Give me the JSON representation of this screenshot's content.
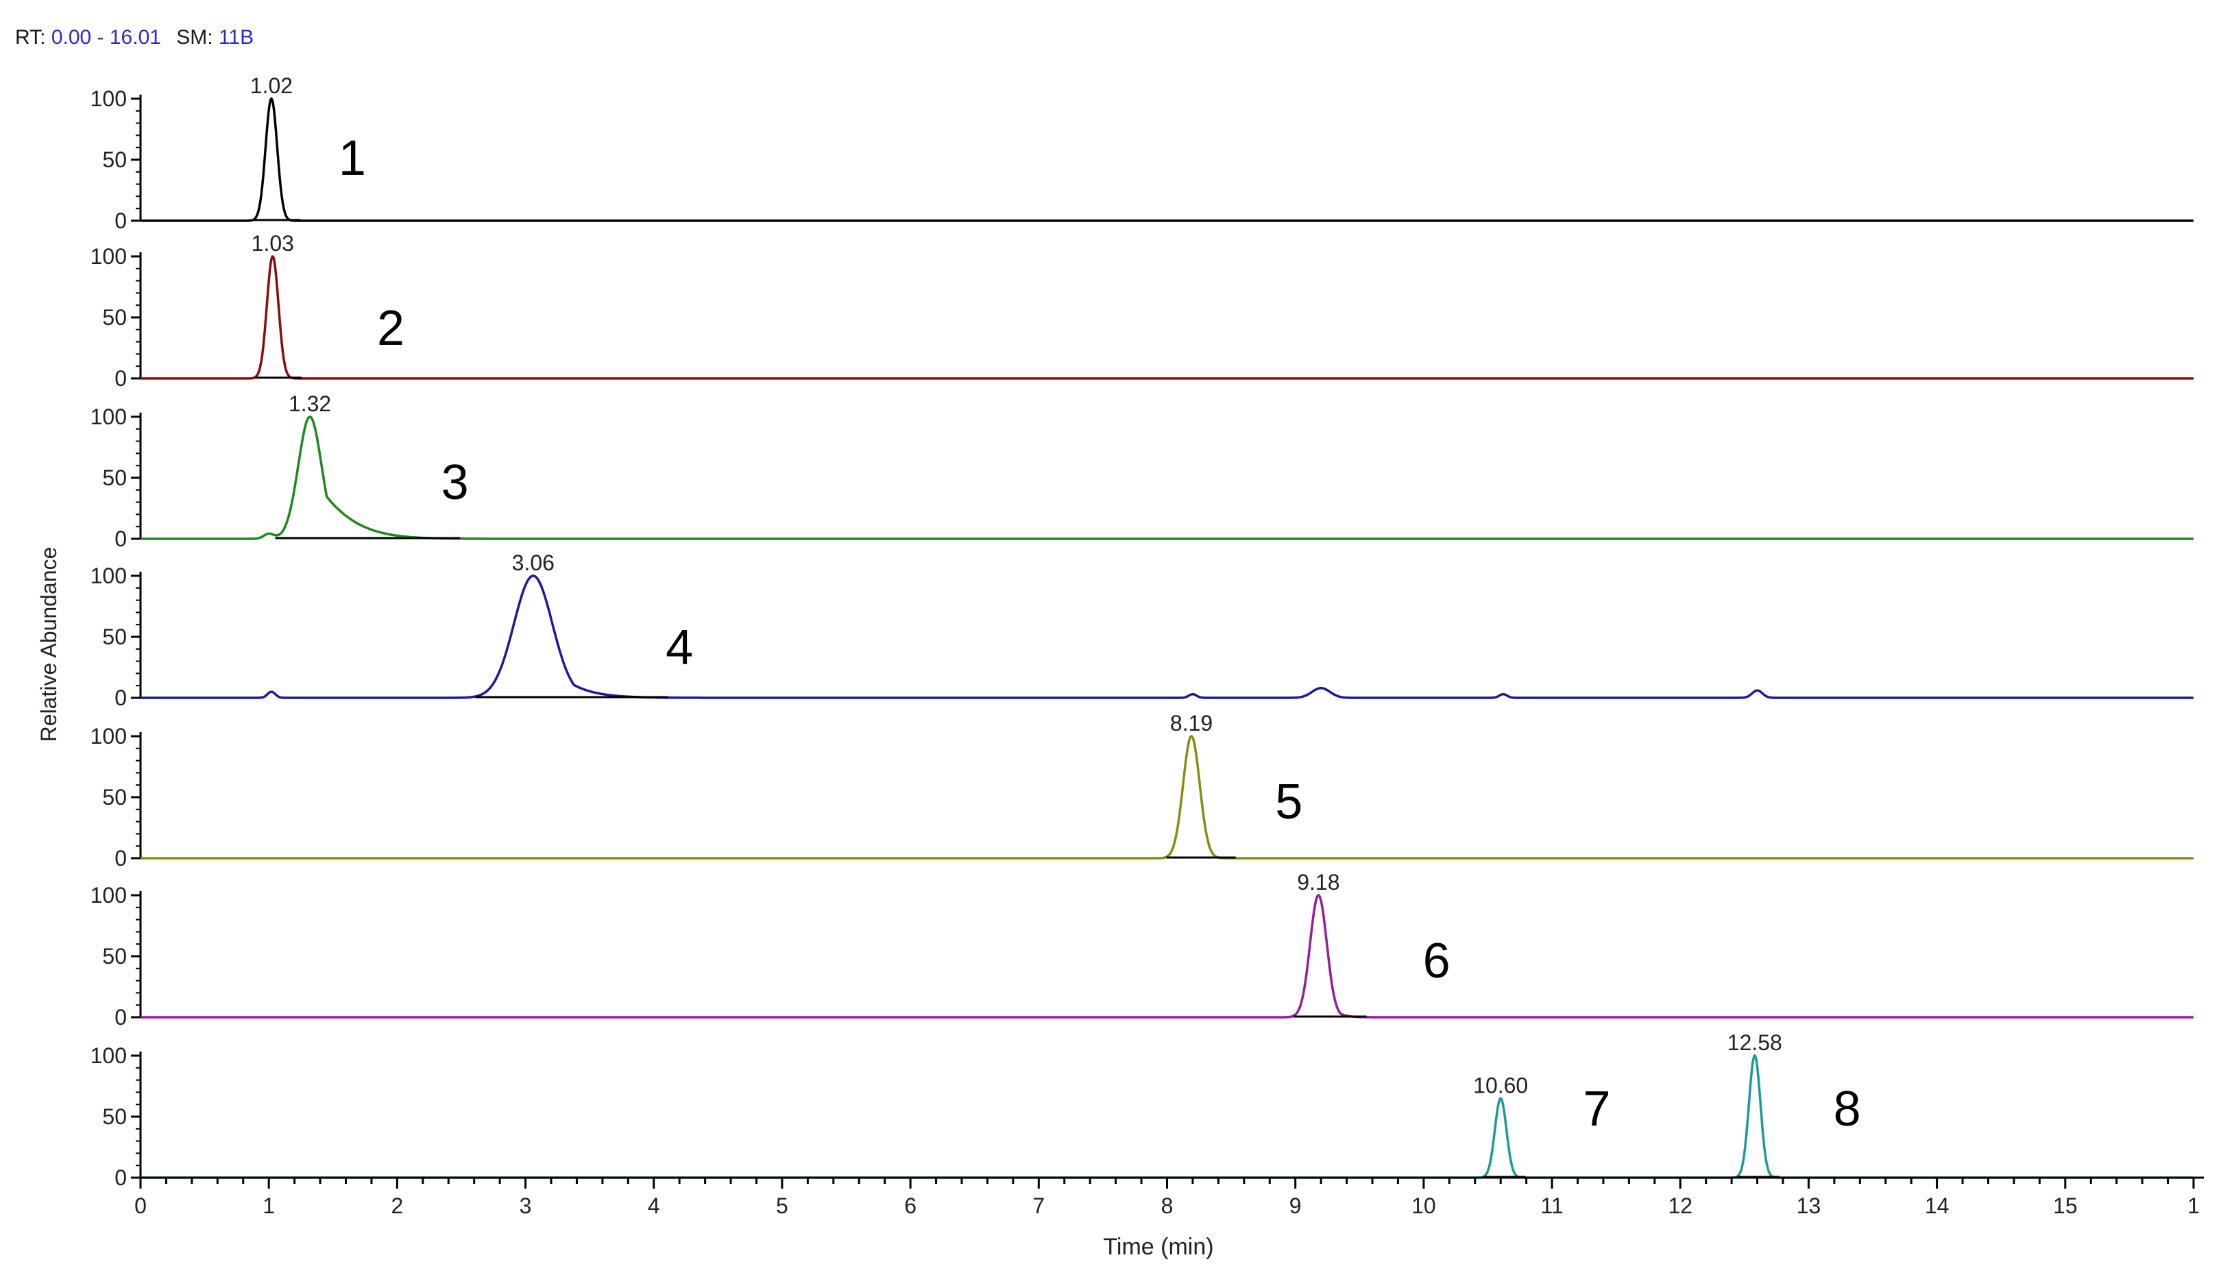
{
  "header": {
    "rt_label": "RT:",
    "rt_value": "0.00 - 16.01",
    "sm_label": "SM:",
    "sm_value": "11B"
  },
  "chart_data": {
    "type": "line",
    "ylabel": "Relative Abundance",
    "xlabel": "Time (min)",
    "xlim": [
      0,
      16.01
    ],
    "ylim": [
      0,
      100
    ],
    "x_ticks": [
      "0",
      "1",
      "2",
      "3",
      "4",
      "5",
      "6",
      "7",
      "8",
      "9",
      "10",
      "11",
      "12",
      "13",
      "14",
      "15",
      "1"
    ],
    "y_ticks": [
      "0",
      "50",
      "100"
    ],
    "grid": false,
    "panels": [
      {
        "number": "1",
        "color": "#000000",
        "peaks": [
          {
            "rt": 1.02,
            "label": "1.02",
            "height": 100,
            "width": 0.045,
            "tail": 0.03
          }
        ],
        "number_x": 1.65,
        "number_y": 50
      },
      {
        "number": "2",
        "color": "#8b0a0a",
        "peaks": [
          {
            "rt": 1.03,
            "label": "1.03",
            "height": 100,
            "width": 0.045,
            "tail": 0.03
          }
        ],
        "number_x": 1.95,
        "number_y": 40
      },
      {
        "number": "3",
        "color": "#1a8a1a",
        "peaks": [
          {
            "rt": 1.32,
            "label": "1.32",
            "height": 100,
            "width": 0.09,
            "tail": 0.3
          },
          {
            "rt": 1.0,
            "label": "",
            "height": 4,
            "width": 0.04,
            "tail": 0.02
          }
        ],
        "number_x": 2.45,
        "number_y": 45
      },
      {
        "number": "4",
        "color": "#1a1a9a",
        "peaks": [
          {
            "rt": 3.06,
            "label": "3.06",
            "height": 100,
            "width": 0.15,
            "tail": 0.2
          },
          {
            "rt": 1.02,
            "label": "",
            "height": 5,
            "width": 0.03,
            "tail": 0.02
          },
          {
            "rt": 8.2,
            "label": "",
            "height": 3,
            "width": 0.03,
            "tail": 0.02
          },
          {
            "rt": 9.2,
            "label": "",
            "height": 8,
            "width": 0.07,
            "tail": 0.04
          },
          {
            "rt": 10.62,
            "label": "",
            "height": 3,
            "width": 0.03,
            "tail": 0.02
          },
          {
            "rt": 12.6,
            "label": "",
            "height": 6,
            "width": 0.04,
            "tail": 0.02
          }
        ],
        "number_x": 4.2,
        "number_y": 40
      },
      {
        "number": "5",
        "color": "#8a8a10",
        "peaks": [
          {
            "rt": 8.19,
            "label": "8.19",
            "height": 100,
            "width": 0.065,
            "tail": 0.05
          }
        ],
        "number_x": 8.95,
        "number_y": 45
      },
      {
        "number": "6",
        "color": "#9a1a9a",
        "peaks": [
          {
            "rt": 9.18,
            "label": "9.18",
            "height": 100,
            "width": 0.065,
            "tail": 0.06
          }
        ],
        "number_x": 10.1,
        "number_y": 45
      },
      {
        "number": "7 / 8",
        "color": "#1a9a9a",
        "peaks": [
          {
            "rt": 10.6,
            "label": "10.60",
            "height": 65,
            "width": 0.045,
            "tail": 0.02
          },
          {
            "rt": 12.58,
            "label": "12.58",
            "height": 100,
            "width": 0.045,
            "tail": 0.02
          }
        ],
        "numbers": [
          {
            "text": "7",
            "x": 11.35,
            "y": 55
          },
          {
            "text": "8",
            "x": 13.3,
            "y": 55
          }
        ]
      }
    ]
  }
}
